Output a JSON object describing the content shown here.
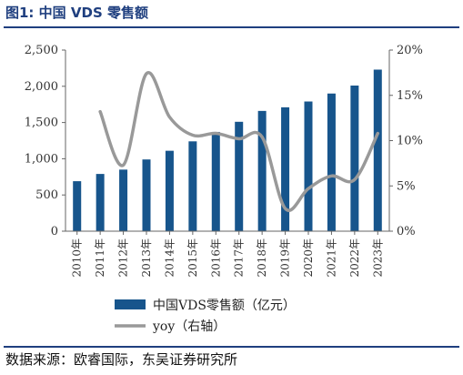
{
  "title": "图1:  中国 VDS 零售额",
  "source": "数据来源：欧睿国际，东吴证券研究所",
  "colors": {
    "bar": "#17558c",
    "line": "#999999",
    "title": "#1f3f7f"
  },
  "chart_data": {
    "type": "bar",
    "categories": [
      "2010年",
      "2011年",
      "2012年",
      "2013年",
      "2014年",
      "2015年",
      "2016年",
      "2017年",
      "2018年",
      "2019年",
      "2020年",
      "2021年",
      "2022年",
      "2023年"
    ],
    "series": [
      {
        "name": "中国VDS零售额（亿元）",
        "type": "bar",
        "axis": "left",
        "values": [
          690,
          790,
          850,
          990,
          1110,
          1240,
          1370,
          1510,
          1660,
          1710,
          1790,
          1900,
          2010,
          2230
        ]
      },
      {
        "name": "yoy（右轴）",
        "type": "line",
        "axis": "right",
        "values": [
          null,
          13.2,
          7.3,
          17.4,
          12.6,
          10.6,
          10.8,
          10.2,
          10.4,
          2.5,
          4.7,
          6.1,
          5.7,
          10.8
        ]
      }
    ],
    "ylim": [
      0,
      2500
    ],
    "yticks": [
      "0",
      "500",
      "1,000",
      "1,500",
      "2,000",
      "2,500"
    ],
    "y2lim": [
      0,
      20
    ],
    "y2ticks": [
      "0%",
      "5%",
      "10%",
      "15%",
      "20%"
    ],
    "legend_position": "bottom"
  }
}
